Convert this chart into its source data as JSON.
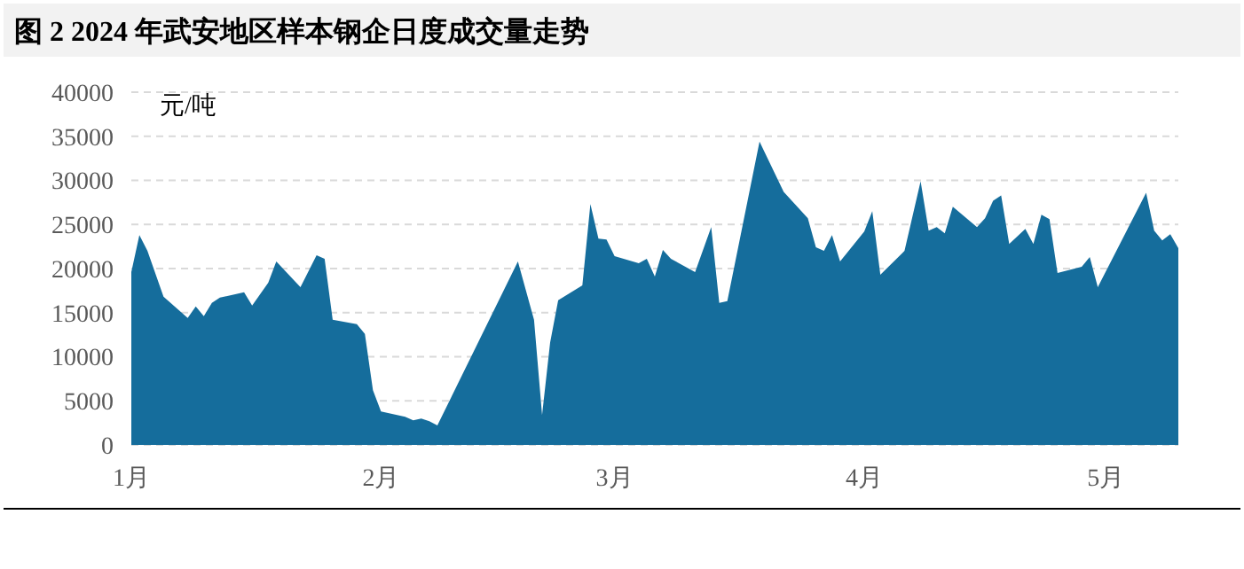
{
  "chart_data": {
    "type": "area",
    "title": "图 2 2024 年武安地区样本钢企日度成交量走势",
    "ylabel": "元/吨",
    "x": [
      "2024-01-01",
      "2024-01-02",
      "2024-01-03",
      "2024-01-05",
      "2024-01-08",
      "2024-01-09",
      "2024-01-10",
      "2024-01-11",
      "2024-01-12",
      "2024-01-15",
      "2024-01-16",
      "2024-01-18",
      "2024-01-19",
      "2024-01-22",
      "2024-01-24",
      "2024-01-25",
      "2024-01-26",
      "2024-01-29",
      "2024-01-30",
      "2024-01-31",
      "2024-02-01",
      "2024-02-04",
      "2024-02-05",
      "2024-02-06",
      "2024-02-07",
      "2024-02-08",
      "2024-02-18",
      "2024-02-20",
      "2024-02-21",
      "2024-02-22",
      "2024-02-23",
      "2024-02-26",
      "2024-02-27",
      "2024-02-28",
      "2024-02-29",
      "2024-03-01",
      "2024-03-04",
      "2024-03-05",
      "2024-03-06",
      "2024-03-07",
      "2024-03-08",
      "2024-03-11",
      "2024-03-13",
      "2024-03-14",
      "2024-03-15",
      "2024-03-19",
      "2024-03-22",
      "2024-03-25",
      "2024-03-26",
      "2024-03-27",
      "2024-03-28",
      "2024-03-29",
      "2024-04-01",
      "2024-04-02",
      "2024-04-03",
      "2024-04-06",
      "2024-04-08",
      "2024-04-09",
      "2024-04-10",
      "2024-04-11",
      "2024-04-12",
      "2024-04-15",
      "2024-04-16",
      "2024-04-17",
      "2024-04-18",
      "2024-04-19",
      "2024-04-21",
      "2024-04-22",
      "2024-04-23",
      "2024-04-24",
      "2024-04-25",
      "2024-04-28",
      "2024-04-29",
      "2024-04-30",
      "2024-05-06",
      "2024-05-07",
      "2024-05-08",
      "2024-05-09",
      "2024-05-10"
    ],
    "series": [
      {
        "color": "#156d9c",
        "values": [
          19600,
          23800,
          22000,
          16800,
          14400,
          15700,
          14600,
          16100,
          16700,
          17300,
          15800,
          18400,
          20800,
          17900,
          21500,
          21100,
          14200,
          13700,
          12600,
          6200,
          3800,
          3200,
          2800,
          3000,
          2700,
          2200,
          20800,
          14200,
          3400,
          11600,
          16400,
          18100,
          27300,
          23400,
          23300,
          21400,
          20600,
          21100,
          19100,
          22100,
          21100,
          19600,
          24700,
          16100,
          16300,
          34400,
          28700,
          25700,
          22400,
          22000,
          23800,
          20800,
          24200,
          26500,
          19300,
          22000,
          29900,
          24300,
          24700,
          24000,
          27000,
          24700,
          25700,
          27700,
          28300,
          22800,
          24500,
          22800,
          26100,
          25600,
          19500,
          20200,
          21300,
          17900,
          28600,
          24300,
          23200,
          23900,
          22300
        ]
      }
    ],
    "xlim": [
      "2024-01-01",
      "2024-05-10"
    ],
    "xticks": [
      {
        "value": "2024-01-01",
        "label": "1月"
      },
      {
        "value": "2024-02-01",
        "label": "2月"
      },
      {
        "value": "2024-03-01",
        "label": "3月"
      },
      {
        "value": "2024-04-01",
        "label": "4月"
      },
      {
        "value": "2024-05-01",
        "label": "5月"
      }
    ],
    "ylim": [
      0,
      40000
    ],
    "yticks": [
      0,
      5000,
      10000,
      15000,
      20000,
      25000,
      30000,
      35000,
      40000
    ],
    "grid": "y"
  }
}
